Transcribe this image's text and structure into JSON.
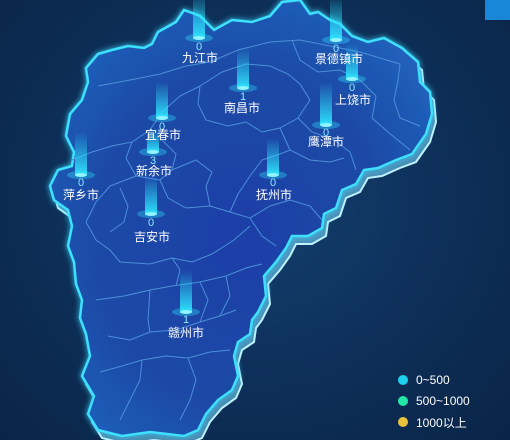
{
  "map": {
    "cities": [
      {
        "name": "九江市",
        "value": "0"
      },
      {
        "name": "景德镇市",
        "value": "0"
      },
      {
        "name": "上饶市",
        "value": "0"
      },
      {
        "name": "南昌市",
        "value": "1"
      },
      {
        "name": "鹰潭市",
        "value": "0"
      },
      {
        "name": "宜春市",
        "value": "0"
      },
      {
        "name": "新余市",
        "value": "3"
      },
      {
        "name": "抚州市",
        "value": "0"
      },
      {
        "name": "萍乡市",
        "value": "0"
      },
      {
        "name": "吉安市",
        "value": "0"
      },
      {
        "name": "赣州市",
        "value": "1"
      }
    ]
  },
  "legend": {
    "items": [
      {
        "label": "0~500",
        "color": "#1ed1f0"
      },
      {
        "label": "500~1000",
        "color": "#24e6a8"
      },
      {
        "label": "1000以上",
        "color": "#e8c23a"
      }
    ]
  },
  "colors": {
    "map_fill": "#1a4aa6",
    "map_border": "#3ee0ff",
    "region_border": "#4c8fd8"
  }
}
